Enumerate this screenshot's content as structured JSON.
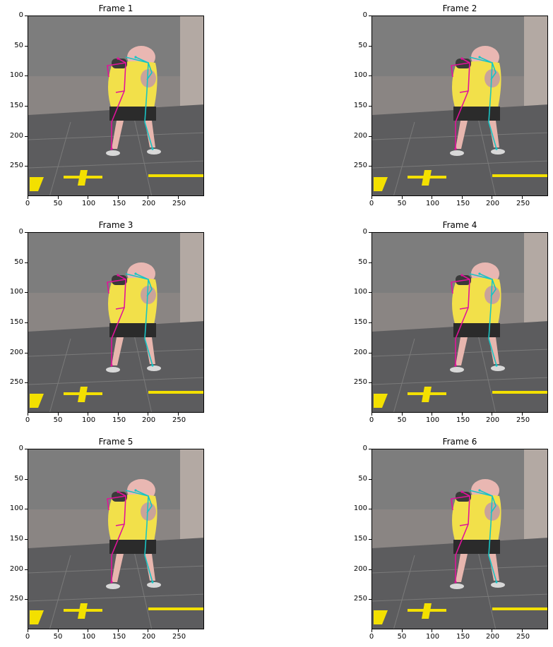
{
  "figure": {
    "frames": [
      {
        "title": "Frame 1"
      },
      {
        "title": "Frame 2"
      },
      {
        "title": "Frame 3"
      },
      {
        "title": "Frame 4"
      },
      {
        "title": "Frame 5"
      },
      {
        "title": "Frame 6"
      }
    ],
    "x_ticks": [
      "0",
      "50",
      "100",
      "150",
      "200",
      "250"
    ],
    "y_ticks": [
      "0",
      "50",
      "100",
      "150",
      "200",
      "250"
    ],
    "colors": {
      "left_side_skeleton": "#e0139a",
      "right_side_skeleton": "#19c4c4",
      "shirt": "#f2e04a",
      "floor_marking": "#f3e000"
    }
  }
}
